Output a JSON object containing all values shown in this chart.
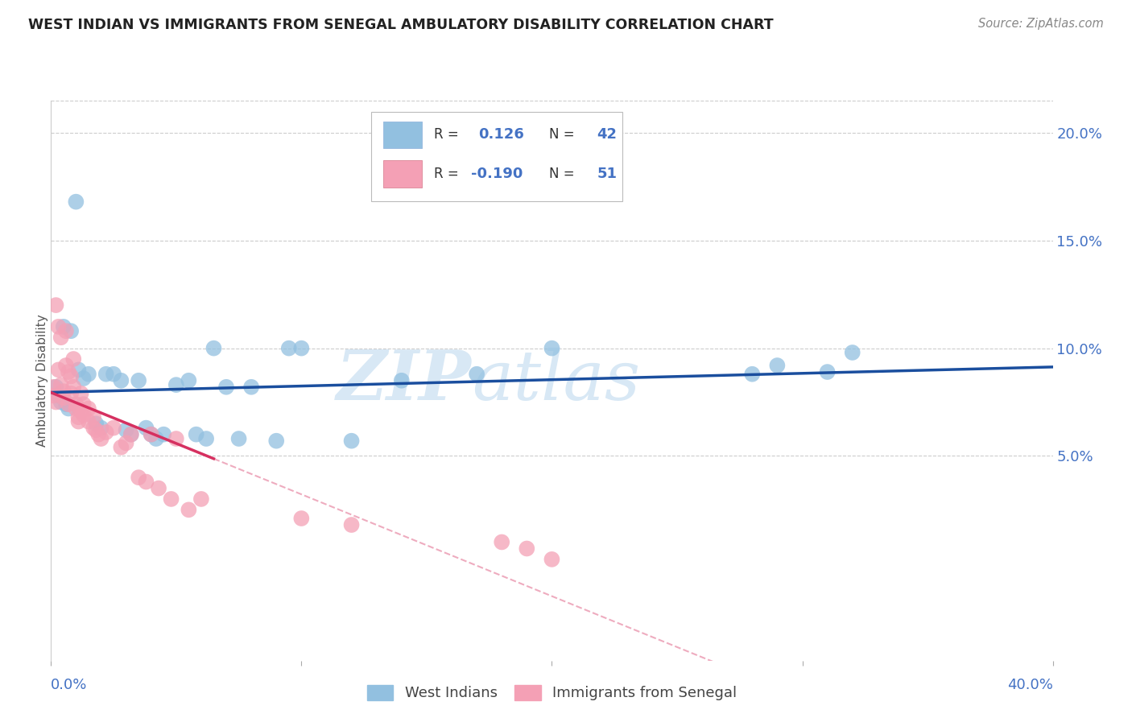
{
  "title": "WEST INDIAN VS IMMIGRANTS FROM SENEGAL AMBULATORY DISABILITY CORRELATION CHART",
  "source": "Source: ZipAtlas.com",
  "ylabel": "Ambulatory Disability",
  "xlim": [
    0.0,
    0.4
  ],
  "ylim": [
    -0.045,
    0.215
  ],
  "yticks": [
    0.05,
    0.1,
    0.15,
    0.2
  ],
  "ytick_labels": [
    "5.0%",
    "10.0%",
    "15.0%",
    "20.0%"
  ],
  "xticks": [
    0.0,
    0.1,
    0.2,
    0.3,
    0.4
  ],
  "blue_R": 0.126,
  "blue_N": 42,
  "pink_R": -0.19,
  "pink_N": 51,
  "legend_label_blue": "West Indians",
  "legend_label_pink": "Immigrants from Senegal",
  "blue_color": "#92C0E0",
  "pink_color": "#F4A0B5",
  "blue_line_color": "#1A4E9E",
  "pink_line_color": "#D63060",
  "watermark_color": "#D8E8F5",
  "blue_x": [
    0.002,
    0.003,
    0.004,
    0.005,
    0.006,
    0.007,
    0.008,
    0.01,
    0.011,
    0.013,
    0.015,
    0.018,
    0.02,
    0.022,
    0.025,
    0.028,
    0.03,
    0.032,
    0.035,
    0.038,
    0.04,
    0.042,
    0.045,
    0.05,
    0.055,
    0.058,
    0.062,
    0.065,
    0.07,
    0.075,
    0.08,
    0.09,
    0.095,
    0.1,
    0.12,
    0.14,
    0.17,
    0.2,
    0.28,
    0.29,
    0.31,
    0.32
  ],
  "blue_y": [
    0.082,
    0.078,
    0.075,
    0.11,
    0.074,
    0.072,
    0.108,
    0.168,
    0.09,
    0.086,
    0.088,
    0.065,
    0.063,
    0.088,
    0.088,
    0.085,
    0.062,
    0.06,
    0.085,
    0.063,
    0.06,
    0.058,
    0.06,
    0.083,
    0.085,
    0.06,
    0.058,
    0.1,
    0.082,
    0.058,
    0.082,
    0.057,
    0.1,
    0.1,
    0.057,
    0.085,
    0.088,
    0.1,
    0.088,
    0.092,
    0.089,
    0.098
  ],
  "pink_x": [
    0.001,
    0.001,
    0.002,
    0.002,
    0.003,
    0.003,
    0.004,
    0.004,
    0.005,
    0.005,
    0.006,
    0.006,
    0.007,
    0.007,
    0.008,
    0.008,
    0.009,
    0.009,
    0.01,
    0.01,
    0.011,
    0.011,
    0.012,
    0.012,
    0.013,
    0.013,
    0.015,
    0.015,
    0.017,
    0.017,
    0.018,
    0.019,
    0.02,
    0.022,
    0.025,
    0.028,
    0.03,
    0.032,
    0.035,
    0.038,
    0.04,
    0.043,
    0.048,
    0.05,
    0.055,
    0.06,
    0.1,
    0.12,
    0.18,
    0.19,
    0.2
  ],
  "pink_y": [
    0.082,
    0.078,
    0.12,
    0.075,
    0.11,
    0.09,
    0.105,
    0.083,
    0.08,
    0.077,
    0.108,
    0.092,
    0.089,
    0.074,
    0.087,
    0.079,
    0.095,
    0.082,
    0.072,
    0.074,
    0.068,
    0.066,
    0.071,
    0.079,
    0.069,
    0.074,
    0.066,
    0.072,
    0.063,
    0.068,
    0.062,
    0.06,
    0.058,
    0.061,
    0.063,
    0.054,
    0.056,
    0.06,
    0.04,
    0.038,
    0.06,
    0.035,
    0.03,
    0.058,
    0.025,
    0.03,
    0.021,
    0.018,
    0.01,
    0.007,
    0.002
  ]
}
